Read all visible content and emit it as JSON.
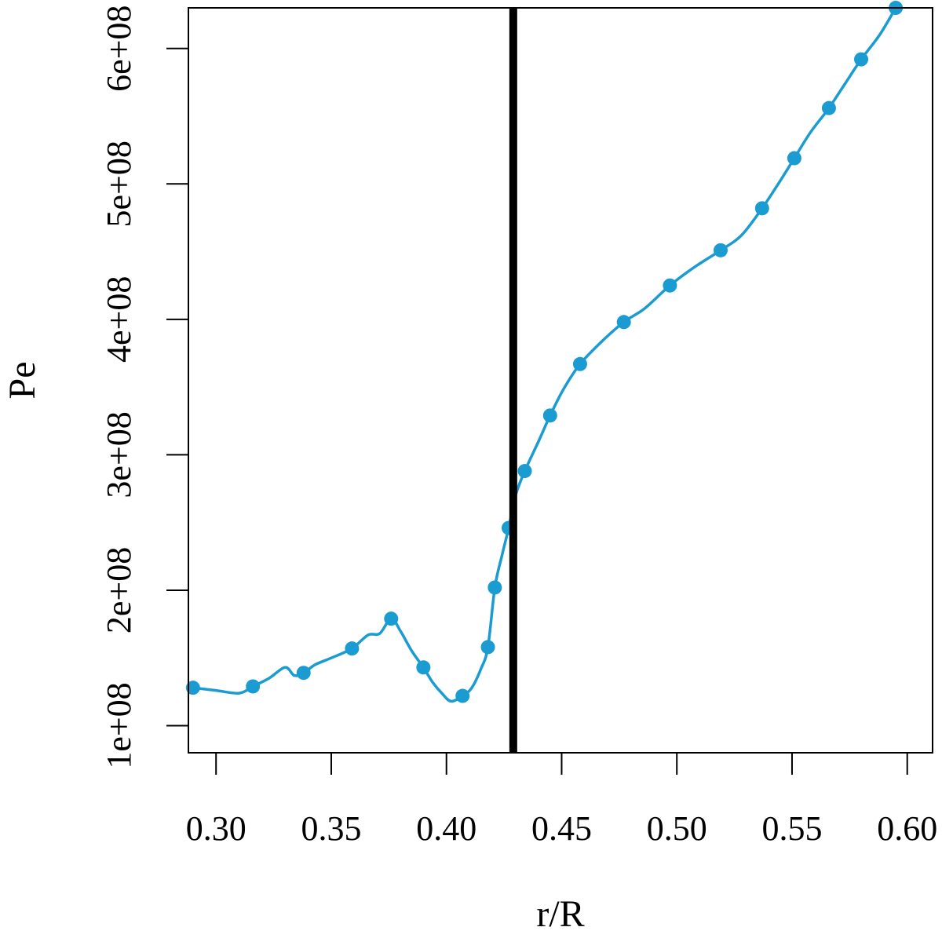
{
  "chart_data": {
    "type": "line",
    "xlabel": "r/R",
    "ylabel": "Pe",
    "xlim": [
      0.288,
      0.611
    ],
    "ylim": [
      80000000,
      630000000
    ],
    "x_ticks": [
      0.3,
      0.35,
      0.4,
      0.45,
      0.5,
      0.55,
      0.6
    ],
    "x_tick_labels": [
      "0.30",
      "0.35",
      "0.40",
      "0.45",
      "0.50",
      "0.55",
      "0.60"
    ],
    "y_ticks": [
      100000000,
      200000000,
      300000000,
      400000000,
      500000000,
      600000000
    ],
    "y_tick_labels": [
      "1e+08",
      "2e+08",
      "3e+08",
      "4e+08",
      "5e+08",
      "6e+08"
    ],
    "grid": false,
    "series_color": "#1a9bd1",
    "vline": {
      "x": 0.429,
      "color": "#000000"
    },
    "curve": {
      "x": [
        0.29,
        0.3,
        0.31,
        0.316,
        0.323,
        0.33,
        0.334,
        0.338,
        0.343,
        0.35,
        0.359,
        0.366,
        0.371,
        0.376,
        0.38,
        0.385,
        0.39,
        0.394,
        0.398,
        0.402,
        0.407,
        0.411,
        0.415,
        0.418,
        0.421,
        0.424,
        0.427,
        0.43,
        0.434,
        0.44,
        0.445,
        0.451,
        0.458,
        0.467,
        0.477,
        0.486,
        0.497,
        0.508,
        0.519,
        0.528,
        0.537,
        0.544,
        0.551,
        0.558,
        0.566,
        0.573,
        0.58,
        0.588,
        0.595
      ],
      "y": [
        128000000,
        126000000,
        124000000,
        129000000,
        135000000,
        143000000,
        137000000,
        139000000,
        145000000,
        150000000,
        157000000,
        167000000,
        168000000,
        179000000,
        170000000,
        155000000,
        143000000,
        132000000,
        124000000,
        118000000,
        122000000,
        128000000,
        142000000,
        158000000,
        202000000,
        225000000,
        246000000,
        270000000,
        288000000,
        310000000,
        329000000,
        349000000,
        367000000,
        383000000,
        398000000,
        408000000,
        425000000,
        439000000,
        451000000,
        462000000,
        482000000,
        500000000,
        519000000,
        538000000,
        556000000,
        574000000,
        592000000,
        610000000,
        630000000
      ]
    },
    "points": {
      "x": [
        0.29,
        0.316,
        0.338,
        0.359,
        0.376,
        0.39,
        0.407,
        0.418,
        0.421,
        0.427,
        0.434,
        0.445,
        0.458,
        0.477,
        0.497,
        0.519,
        0.537,
        0.551,
        0.566,
        0.58,
        0.595
      ],
      "y": [
        128000000,
        129000000,
        139000000,
        157000000,
        179000000,
        143000000,
        122000000,
        158000000,
        202000000,
        246000000,
        288000000,
        329000000,
        367000000,
        398000000,
        425000000,
        451000000,
        482000000,
        519000000,
        556000000,
        592000000,
        630000000
      ]
    }
  }
}
